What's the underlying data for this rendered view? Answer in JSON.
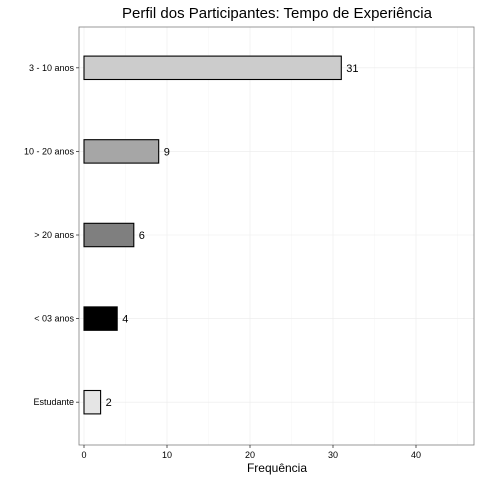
{
  "chart_data": {
    "type": "bar",
    "orientation": "horizontal",
    "title": "Perfil dos Participantes: Tempo de Experiência",
    "xlabel": "Frequência",
    "ylabel": "",
    "xlim": [
      0,
      47
    ],
    "x_ticks": [
      0,
      10,
      20,
      30,
      40
    ],
    "x_tick_labels": [
      "0",
      "10",
      "20",
      "30",
      "40"
    ],
    "grid": true,
    "categories": [
      "3 - 10 anos",
      "10 - 20 anos",
      "> 20 anos",
      "< 03 anos",
      "Estudante"
    ],
    "values": [
      31,
      9,
      6,
      4,
      2
    ],
    "data_labels": [
      "31",
      "9",
      "6",
      "4",
      "2"
    ],
    "bar_colors": [
      "#cccccc",
      "#a6a6a6",
      "#7f7f7f",
      "#000000",
      "#e5e5e5"
    ],
    "bar_outline_color": "#000000"
  }
}
